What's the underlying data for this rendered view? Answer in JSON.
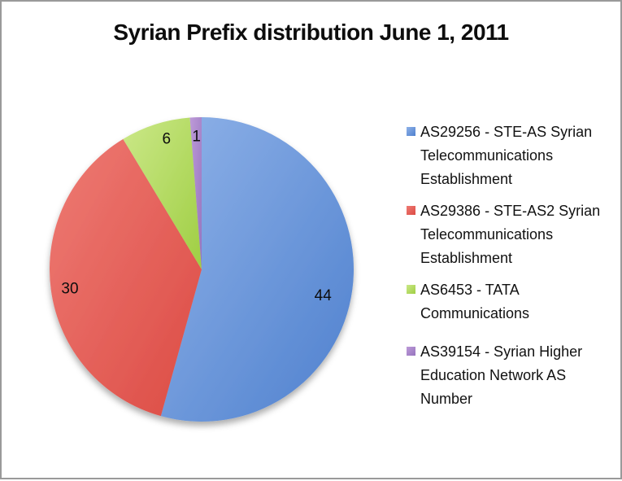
{
  "title": "Syrian Prefix distribution June 1, 2011",
  "frame": {
    "border_color": "#9a9a9a",
    "background": "#ffffff"
  },
  "chart_data": {
    "type": "pie",
    "title": "Syrian Prefix distribution June 1, 2011",
    "start_angle": "12 o'clock",
    "direction": "clockwise",
    "total": 81,
    "legend_position": "right",
    "slices": [
      {
        "label": "AS29256 - STE-AS Syrian Telecommunications Establishment",
        "value": 44,
        "color": "#4E80CE",
        "color_light": "#8FB2E8"
      },
      {
        "label": "AS29386 - STE-AS2 Syrian Telecommunications Establishment",
        "value": 30,
        "color": "#DC4B44",
        "color_light": "#EE7B74"
      },
      {
        "label": "AS6453 - TATA Communications",
        "value": 6,
        "color": "#9FCE43",
        "color_light": "#CBE888"
      },
      {
        "label": "AS39154 - Syrian Higher Education Network AS Number",
        "value": 1,
        "color": "#9674BE",
        "color_light": "#BD9AD8"
      }
    ]
  }
}
